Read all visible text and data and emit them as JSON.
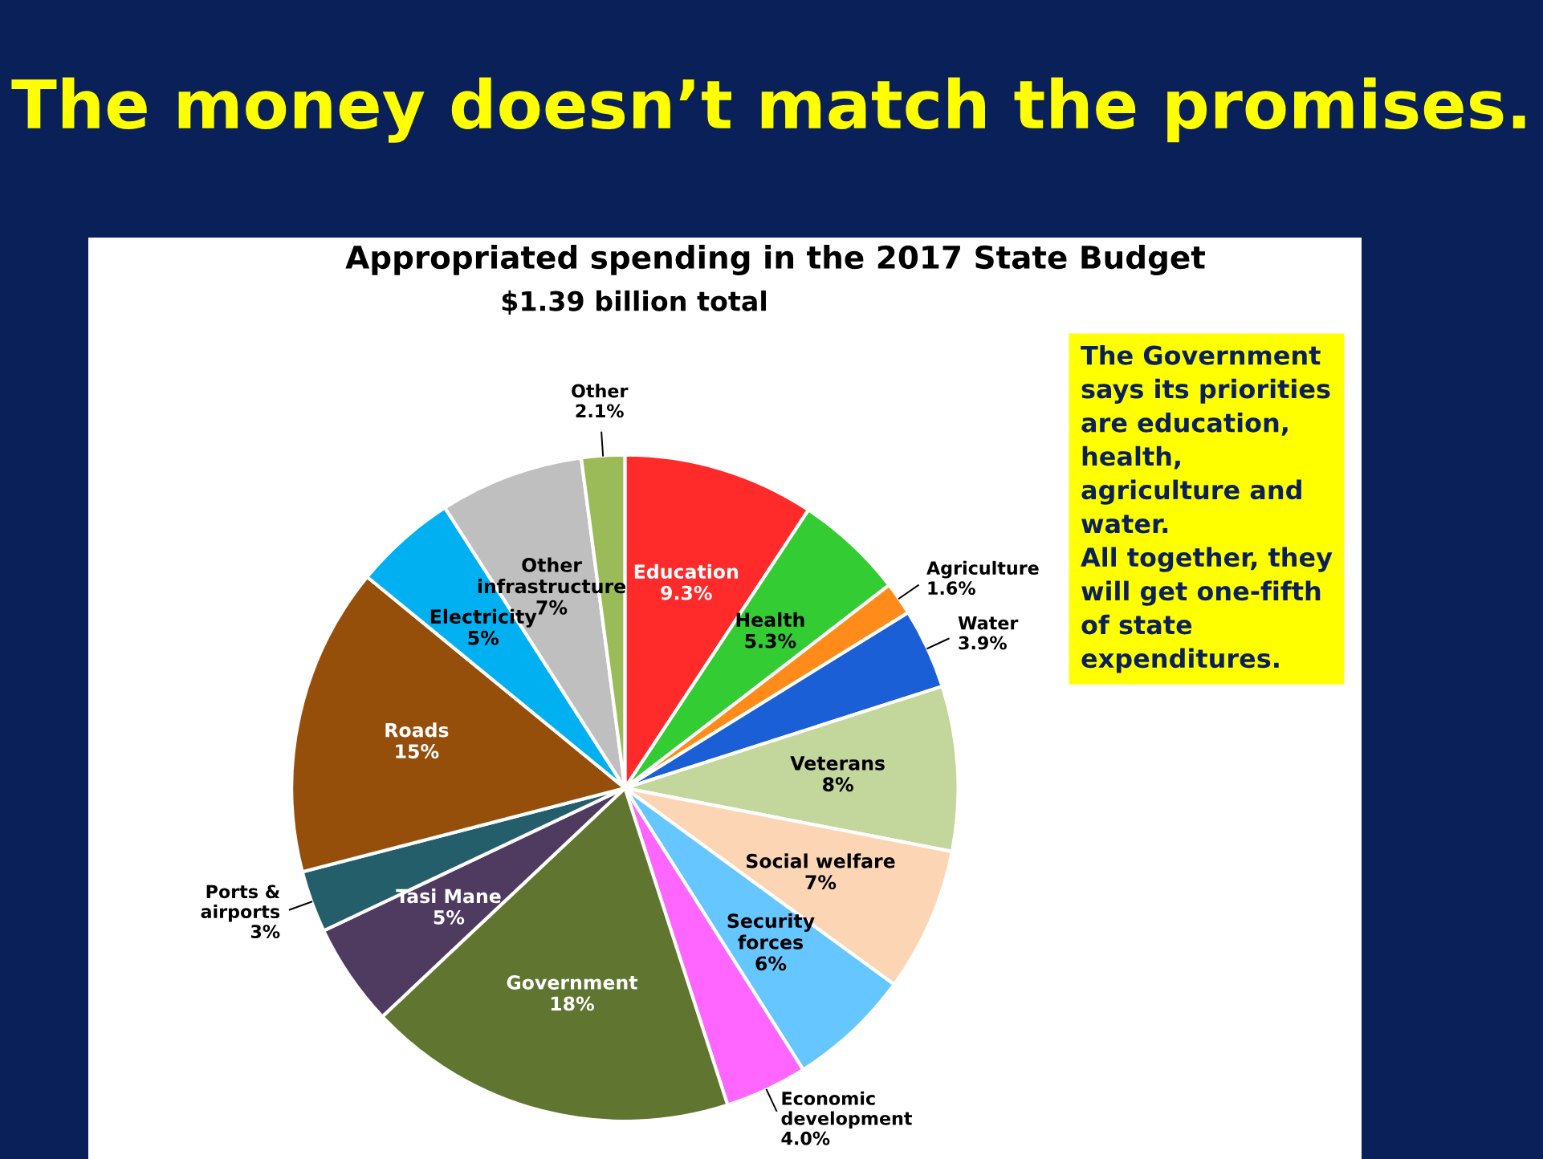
{
  "chart_data": {
    "type": "pie",
    "title": "Appropriated spending in the 2017 State Budget",
    "subtitle": "$1.39 billion total",
    "categories": [
      "Education",
      "Health",
      "Agriculture",
      "Water",
      "Veterans",
      "Social welfare",
      "Security forces",
      "Economic development",
      "Government",
      "Tasi Mane",
      "Ports & airports",
      "Roads",
      "Electricity",
      "Other infrastructure",
      "Other"
    ],
    "values": [
      9.3,
      5.3,
      1.6,
      3.9,
      8,
      7,
      6,
      4.0,
      18,
      5,
      3,
      15,
      5,
      7,
      2.1
    ],
    "value_labels": [
      "9.3%",
      "5.3%",
      "1.6%",
      "3.9%",
      "8%",
      "7%",
      "6%",
      "4.0%",
      "18%",
      "5%",
      "3%",
      "15%",
      "5%",
      "7%",
      "2.1%"
    ],
    "colors": [
      "#ff2a2a",
      "#33cc33",
      "#ff8c1a",
      "#1a5fd6",
      "#c3d69b",
      "#fcd5b5",
      "#66c6ff",
      "#ff66ff",
      "#5f7530",
      "#4f3a60",
      "#245e6b",
      "#954f0b",
      "#00b0f0",
      "#bfbfbf",
      "#9bbb59"
    ],
    "annotations": [
      "The money doesn’t match the promises.",
      "The Government\nsays its priorities\nare education,\nhealth,\nagriculture and\nwater.\nAll together, they\nwill get one-fifth\nof state\nexpenditures."
    ]
  }
}
